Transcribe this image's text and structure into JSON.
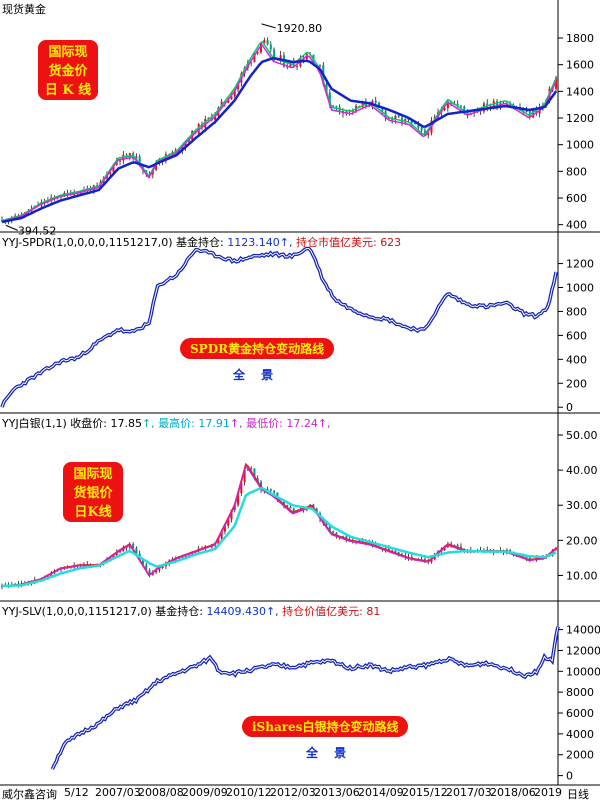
{
  "chart_data": [
    {
      "type": "candlestick",
      "title": "现货黄金",
      "box_label": "国际现货金价日K线",
      "box_lines": [
        "国际现",
        "货金价",
        "日 K 线"
      ],
      "high_label": "1920.80",
      "low_label": "394.52",
      "yticks": [
        400,
        600,
        800,
        1000,
        1200,
        1400,
        1600,
        1800
      ],
      "ylim": [
        360,
        1980
      ],
      "x": [
        2005.0,
        2005.5,
        2006.0,
        2006.5,
        2007.0,
        2007.5,
        2008.0,
        2008.4,
        2008.8,
        2009.0,
        2009.5,
        2010.0,
        2010.5,
        2011.0,
        2011.4,
        2011.7,
        2012.0,
        2012.5,
        2012.9,
        2013.2,
        2013.5,
        2014.0,
        2014.5,
        2015.0,
        2015.5,
        2015.9,
        2016.5,
        2017.0,
        2017.5,
        2018.0,
        2018.6,
        2019.0,
        2019.3
      ],
      "close": [
        430,
        470,
        560,
        620,
        650,
        690,
        900,
        920,
        760,
        880,
        950,
        1110,
        1230,
        1420,
        1640,
        1780,
        1650,
        1600,
        1700,
        1570,
        1280,
        1250,
        1320,
        1200,
        1170,
        1070,
        1340,
        1240,
        1290,
        1330,
        1220,
        1300,
        1500
      ],
      "ma_slow": [
        420,
        450,
        520,
        580,
        620,
        660,
        820,
        870,
        830,
        860,
        920,
        1050,
        1170,
        1330,
        1510,
        1620,
        1650,
        1620,
        1630,
        1570,
        1420,
        1330,
        1310,
        1260,
        1200,
        1130,
        1230,
        1250,
        1270,
        1290,
        1260,
        1280,
        1400
      ]
    },
    {
      "type": "line",
      "title_prefix": "YYJ-SPDR(1,0,0,0,0,1151217,0) 基金持仓:",
      "holdings_value": "1123.140",
      "title_suffix": "持仓市值亿美元:",
      "market_value": "623",
      "label": "SPDR黄金持仓变动路线",
      "sub_label": "全 景",
      "yticks": [
        0,
        200,
        400,
        600,
        800,
        1000,
        1200
      ],
      "ylim": [
        -40,
        1330
      ],
      "x": [
        2005.0,
        2005.3,
        2005.8,
        2006.5,
        2007.0,
        2007.5,
        2008.0,
        2008.3,
        2008.8,
        2009.0,
        2009.2,
        2009.5,
        2010.0,
        2010.5,
        2011.0,
        2011.5,
        2012.0,
        2012.5,
        2012.9,
        2013.0,
        2013.3,
        2013.6,
        2014.0,
        2014.5,
        2015.0,
        2015.4,
        2015.9,
        2016.2,
        2016.5,
        2017.0,
        2017.5,
        2018.0,
        2018.5,
        2018.8,
        2019.1,
        2019.3
      ],
      "values": [
        10,
        150,
        250,
        380,
        420,
        550,
        650,
        620,
        700,
        1000,
        1050,
        1100,
        1320,
        1270,
        1220,
        1260,
        1280,
        1260,
        1330,
        1300,
        1050,
        900,
        820,
        760,
        730,
        670,
        640,
        800,
        950,
        860,
        840,
        870,
        780,
        760,
        840,
        1120
      ]
    },
    {
      "type": "candlestick",
      "title_prefix": "YYJ白银(1,1) 收盘价:",
      "close_value": "17.85",
      "high_prefix": "最高价:",
      "high_value": "17.91",
      "low_prefix": "最低价:",
      "low_value": "17.24",
      "box_label": "国际现货银价日K线",
      "box_lines": [
        "国际现",
        "货银价",
        "日K线"
      ],
      "yticks": [
        10,
        20,
        30,
        40,
        50
      ],
      "ylim": [
        3,
        52
      ],
      "x": [
        2005.0,
        2005.5,
        2006.0,
        2006.5,
        2007.0,
        2007.5,
        2008.0,
        2008.3,
        2008.8,
        2009.0,
        2009.5,
        2010.0,
        2010.5,
        2011.0,
        2011.3,
        2011.7,
        2012.0,
        2012.5,
        2013.0,
        2013.5,
        2014.0,
        2014.5,
        2015.0,
        2015.5,
        2016.0,
        2016.5,
        2017.0,
        2017.5,
        2018.0,
        2018.6,
        2019.0,
        2019.3
      ],
      "close": [
        7,
        7.5,
        9,
        12,
        13,
        13,
        17,
        19,
        10,
        12,
        15,
        17,
        19,
        30,
        42,
        35,
        33,
        28,
        30,
        22,
        20,
        19,
        17,
        15,
        14,
        19,
        17,
        17,
        17,
        14.5,
        15,
        17.8
      ],
      "ma_slow": [
        7,
        7.2,
        8.5,
        10.5,
        12,
        12.8,
        15.5,
        17,
        13.5,
        12.5,
        14,
        16,
        17.5,
        24,
        33,
        35,
        33,
        30,
        29,
        24,
        21,
        19.5,
        18,
        16.5,
        15.2,
        16.5,
        17,
        16.8,
        16.8,
        15.5,
        15.2,
        16.5
      ]
    },
    {
      "type": "line",
      "title_prefix": "YYJ-SLV(1,0,0,0,1151217,0) 基金持仓:",
      "holdings_value": "14409.430",
      "title_suffix": "持仓价值亿美元:",
      "market_value": "81",
      "label": "iShares白银持仓变动路线",
      "sub_label": "全 景",
      "yticks": [
        0,
        2000,
        4000,
        6000,
        8000,
        10000,
        12000,
        14000
      ],
      "ylim": [
        -900,
        15300
      ],
      "x": [
        2006.3,
        2006.6,
        2007.0,
        2007.5,
        2008.0,
        2008.5,
        2009.0,
        2009.5,
        2010.0,
        2010.4,
        2010.6,
        2011.0,
        2011.5,
        2012.0,
        2012.5,
        2013.0,
        2013.5,
        2014.0,
        2014.5,
        2015.0,
        2015.5,
        2016.0,
        2016.5,
        2017.0,
        2017.5,
        2018.0,
        2018.5,
        2018.8,
        2019.0,
        2019.2,
        2019.35
      ],
      "values": [
        700,
        3000,
        4000,
        5000,
        6500,
        7300,
        9000,
        9800,
        10500,
        11300,
        10000,
        9800,
        10200,
        10600,
        10400,
        10800,
        11000,
        10300,
        10600,
        10000,
        10400,
        10600,
        11200,
        10500,
        10800,
        10300,
        9600,
        10000,
        11300,
        11000,
        14400
      ]
    }
  ],
  "x_axis": {
    "ticks": [
      "威尔鑫咨询",
      "5/12",
      "2007/03",
      "2008/08",
      "2009/09",
      "2010/12",
      "2012/03",
      "2013/06",
      "2014/09",
      "2015/12",
      "2017/03",
      "2018/06",
      "2019",
      "日线"
    ],
    "xlim": [
      2005.0,
      2019.35
    ]
  }
}
